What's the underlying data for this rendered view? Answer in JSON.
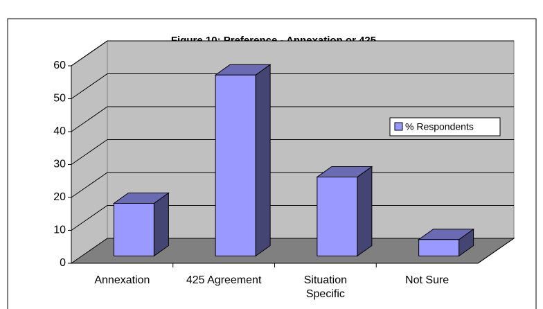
{
  "chart_data": {
    "type": "bar3d",
    "title": "Figure 10:  Preference - Annexation or 425",
    "categories": [
      "Annexation",
      "425 Agreement",
      "Situation Specific",
      "Not Sure"
    ],
    "series": [
      {
        "name": "% Respondents",
        "color": "#9999ff",
        "values": [
          16,
          55,
          24,
          5
        ]
      }
    ],
    "ylim": [
      0,
      60
    ],
    "yticks": [
      0,
      10,
      20,
      30,
      40,
      50,
      60
    ],
    "grid": true,
    "legend": "right"
  }
}
